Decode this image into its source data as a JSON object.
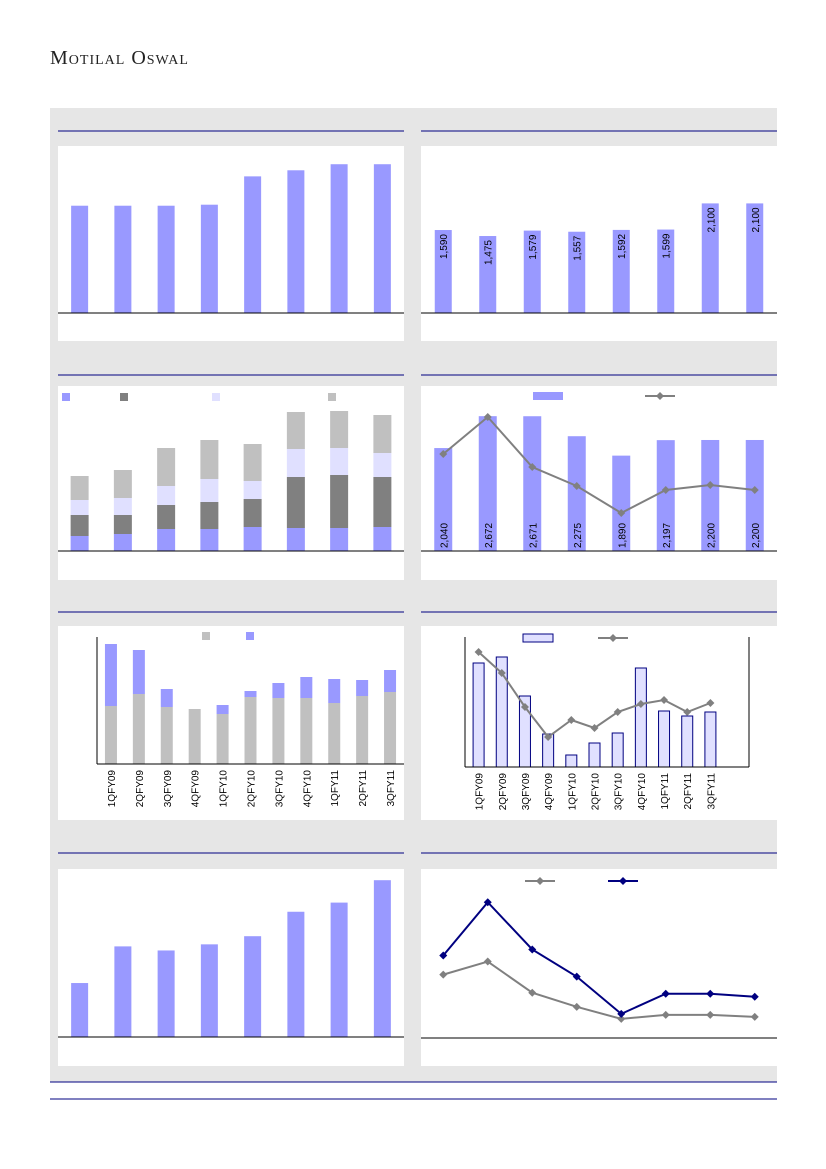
{
  "header": {
    "title": "Motilal Oswal"
  },
  "chart_data": [
    {
      "type": "bar",
      "ylim": [
        0,
        165
      ],
      "series": [
        {
          "color": "#9999ff",
          "values": [
            106,
            106,
            106,
            107,
            135,
            141,
            147,
            147
          ]
        }
      ]
    },
    {
      "type": "bar",
      "ylim": [
        0,
        3200
      ],
      "series": [
        {
          "color": "#9999ff",
          "values": [
            1590,
            1475,
            1579,
            1557,
            1592,
            1599,
            2100,
            2100
          ],
          "value_labels": [
            "1,590",
            "1,475",
            "1,579",
            "1,557",
            "1,592",
            "1,599",
            "2,100",
            "2,100"
          ]
        }
      ]
    },
    {
      "type": "stacked_bar",
      "ylim": [
        0,
        165
      ],
      "series": [
        {
          "color": "#9999ff",
          "values": [
            15,
            17,
            22,
            22,
            24,
            23,
            23,
            24
          ]
        },
        {
          "color": "#808080",
          "values": [
            21,
            19,
            24,
            27,
            28,
            51,
            53,
            50
          ]
        },
        {
          "color": "#e0e0ff",
          "values": [
            15,
            17,
            19,
            23,
            18,
            28,
            27,
            24
          ]
        },
        {
          "color": "#c0c0c0",
          "values": [
            24,
            28,
            38,
            39,
            37,
            37,
            37,
            38
          ]
        }
      ]
    },
    {
      "type": "bar_line",
      "ylim": [
        0,
        3270
      ],
      "y2lim": [
        0,
        165
      ],
      "series": [
        {
          "color": "#9999ff",
          "values": [
            2040,
            2672,
            2671,
            2275,
            1890,
            2197,
            2200,
            2200
          ],
          "value_labels": [
            "2,040",
            "2,672",
            "2,671",
            "2,275",
            "1,890",
            "2,197",
            "2,200",
            "2,200"
          ]
        },
        {
          "color": "#808080",
          "axis": "y2",
          "values": [
            97,
            134,
            84,
            65,
            38,
            61,
            66,
            61
          ]
        }
      ]
    },
    {
      "type": "stacked_bar",
      "ylim": [
        0,
        127
      ],
      "categories": [
        "1QFY09",
        "2QFY09",
        "3QFY09",
        "4QFY09",
        "1QFY10",
        "2QFY10",
        "3QFY10",
        "4QFY10",
        "1QFY11",
        "2QFY11",
        "3QFY11"
      ],
      "series": [
        {
          "color": "#c0c0c0",
          "values": [
            58,
            70,
            57,
            55,
            50,
            67,
            66,
            66,
            61,
            68,
            72
          ]
        },
        {
          "color": "#9999ff",
          "values": [
            62,
            44,
            18,
            0,
            9,
            6,
            15,
            21,
            24,
            16,
            22
          ]
        }
      ]
    },
    {
      "type": "bar_line",
      "ylim": [
        0,
        130
      ],
      "y2lim": [
        0,
        130
      ],
      "categories": [
        "1QFY09",
        "2QFY09",
        "3QFY09",
        "4QFY09",
        "1QFY10",
        "2QFY10",
        "3QFY10",
        "4QFY10",
        "1QFY11",
        "2QFY11",
        "3QFY11"
      ],
      "series": [
        {
          "color": "#e0e0ff",
          "edgecolor": "#000080",
          "values": [
            104,
            110,
            71,
            33,
            12,
            24,
            34,
            99,
            56,
            51,
            55
          ]
        },
        {
          "color": "#808080",
          "axis": "y2",
          "values": [
            115,
            94,
            60,
            30,
            47,
            39,
            55,
            63,
            67,
            55,
            64
          ]
        }
      ]
    },
    {
      "type": "bar",
      "ylim": [
        0,
        165
      ],
      "series": [
        {
          "color": "#9999ff",
          "values": [
            53,
            89,
            85,
            91,
            99,
            123,
            132,
            154
          ]
        }
      ]
    },
    {
      "type": "line",
      "ylim": [
        0,
        168
      ],
      "series": [
        {
          "color": "#808080",
          "values": [
            63,
            76,
            45,
            31,
            19,
            23,
            23,
            21
          ]
        },
        {
          "color": "#000080",
          "values": [
            82,
            135,
            88,
            61,
            24,
            44,
            44,
            41
          ]
        }
      ]
    }
  ]
}
